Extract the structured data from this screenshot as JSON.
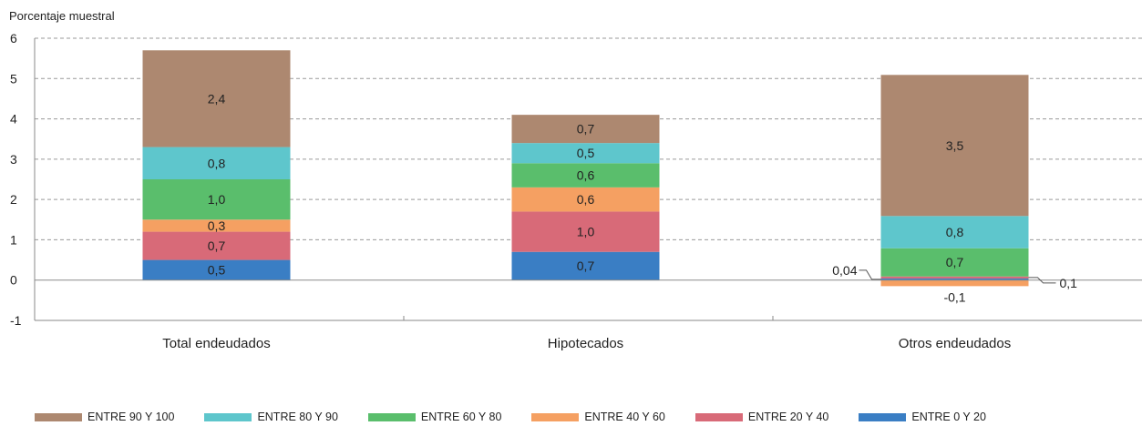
{
  "chart_data": {
    "type": "bar",
    "stacked": true,
    "title": "",
    "ylabel": "Porcentaje muestral",
    "xlabel": "",
    "ylim": [
      -1,
      6
    ],
    "yticks": [
      "6",
      "5",
      "4",
      "3",
      "2",
      "1",
      "0",
      "-1"
    ],
    "grid": true,
    "legend_position": "bottom",
    "categories": [
      "Total endeudados",
      "Hipotecados",
      "Otros endeudados"
    ],
    "series": [
      {
        "name": "ENTRE 0 Y 20",
        "color": "#3a7ec4",
        "values": [
          0.5,
          0.7,
          0.04
        ],
        "labels": [
          "0,5",
          "0,7",
          "0,04"
        ]
      },
      {
        "name": "ENTRE 20 Y 40",
        "color": "#d86a78",
        "values": [
          0.7,
          1.0,
          0.05
        ],
        "labels": [
          "0,7",
          "1,0",
          "0,1"
        ]
      },
      {
        "name": "ENTRE 40 Y 60",
        "color": "#f5a062",
        "values": [
          0.3,
          0.6,
          -0.15
        ],
        "labels": [
          "0,3",
          "0,6",
          "-0,1"
        ]
      },
      {
        "name": "ENTRE 60 Y 80",
        "color": "#5abe6c",
        "values": [
          1.0,
          0.6,
          0.7
        ],
        "labels": [
          "1,0",
          "0,6",
          "0,7"
        ]
      },
      {
        "name": "ENTRE 80 Y 90",
        "color": "#5ec6cc",
        "values": [
          0.8,
          0.5,
          0.8
        ],
        "labels": [
          "0,8",
          "0,5",
          "0,8"
        ]
      },
      {
        "name": "ENTRE 90 Y 100",
        "color": "#ad8870",
        "values": [
          2.4,
          0.7,
          3.5
        ],
        "labels": [
          "2,4",
          "0,7",
          "3,5"
        ]
      }
    ]
  }
}
